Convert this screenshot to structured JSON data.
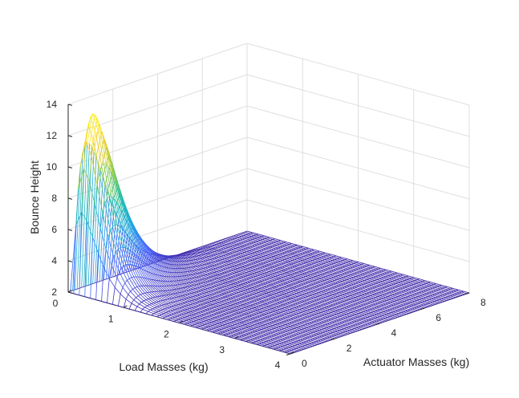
{
  "chart_data": {
    "type": "surface",
    "title": "",
    "xlabel": "Load Masses (kg)",
    "ylabel": "Actuator Masses (kg)",
    "zlabel": "Bounce Height",
    "xlim": [
      0,
      4
    ],
    "ylim": [
      0,
      8
    ],
    "zlim": [
      2,
      14
    ],
    "xticks": [
      "0",
      "1",
      "2",
      "3",
      "4"
    ],
    "yticks": [
      "0",
      "2",
      "4",
      "6",
      "8"
    ],
    "zticks": [
      "2",
      "4",
      "6",
      "8",
      "10",
      "12",
      "14"
    ],
    "grid": true,
    "style": "wireframe mesh, colormap parula (blue = low, yellow = high)",
    "peak": {
      "load_mass": 0.2,
      "actuator_mass": 0.6,
      "bounce_height": 13.3
    },
    "floor_value": 2,
    "colormap": [
      "#3e26a8",
      "#4a63fd",
      "#1fa6e0",
      "#1ec0a8",
      "#8fcb3e",
      "#f9d12a",
      "#f9fb0e"
    ]
  }
}
